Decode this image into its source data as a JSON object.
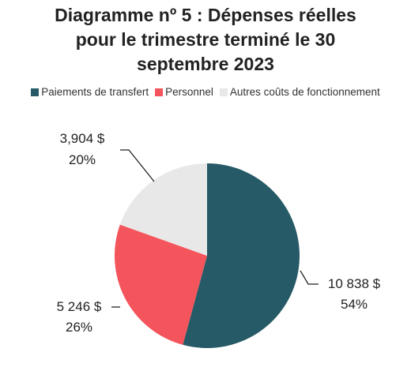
{
  "chart_data": {
    "type": "pie",
    "title_lines": [
      "Diagramme nº 5 : Dépenses réelles",
      "pour le trimestre terminé le 30",
      "septembre 2023"
    ],
    "legend_position": "top",
    "slices": [
      {
        "name": "Paiements de transfert",
        "value": 10838,
        "value_label": "10 838 $",
        "percent_label": "54%",
        "color": "#255a66"
      },
      {
        "name": "Personnel",
        "value": 5246,
        "value_label": "5 246 $",
        "percent_label": "26%",
        "color": "#f4545c"
      },
      {
        "name": "Autres coûts de fonctionnement",
        "value": 3904,
        "value_label": "3,904 $",
        "percent_label": "20%",
        "color": "#e8e8e8"
      }
    ]
  }
}
